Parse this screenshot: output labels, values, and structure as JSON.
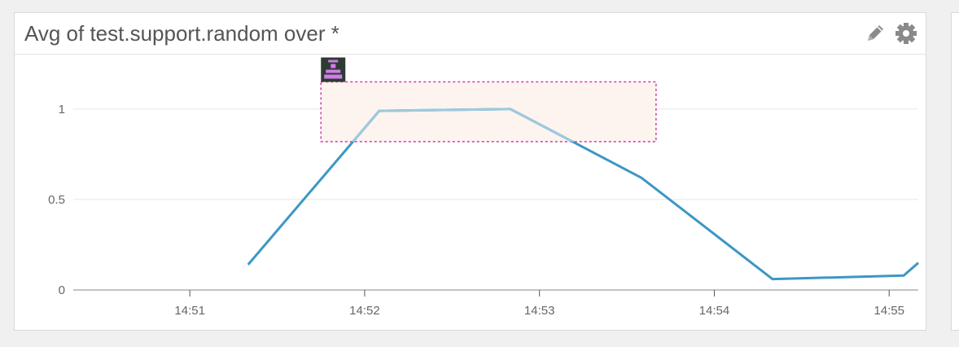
{
  "widget": {
    "title": "Avg of test.support.random over *"
  },
  "icons": {
    "edit": "pencil-icon",
    "settings": "gear-icon",
    "event": "event-marker-icon"
  },
  "colors": {
    "line": "#3d97c4",
    "line_highlight": "#9ec9de",
    "selection_border": "#d63aa8",
    "selection_fill": "#fdf4ef",
    "event_marker": "#cf7de8"
  },
  "chart_data": {
    "type": "line",
    "title": "Avg of test.support.random over *",
    "xlabel": "",
    "ylabel": "",
    "x_ticks": [
      "14:51",
      "14:52",
      "14:53",
      "14:54",
      "14:55"
    ],
    "y_ticks": [
      "0",
      "0.5",
      "1"
    ],
    "ylim": [
      0,
      1.22
    ],
    "xlim": [
      "14:50:20",
      "14:55:10"
    ],
    "grid": true,
    "series": [
      {
        "x": [
          "14:51:20",
          "14:52:05",
          "14:52:50",
          "14:53:35",
          "14:54:20",
          "14:55:05",
          "14:55:10"
        ],
        "y": [
          0.14,
          0.99,
          1.0,
          0.62,
          0.06,
          0.08,
          0.15
        ]
      }
    ],
    "selection": {
      "x_start": "14:51:45",
      "x_end": "14:53:40",
      "y_low": 0.82,
      "y_high": 1.15
    },
    "event_marker_time": "14:51:45"
  }
}
